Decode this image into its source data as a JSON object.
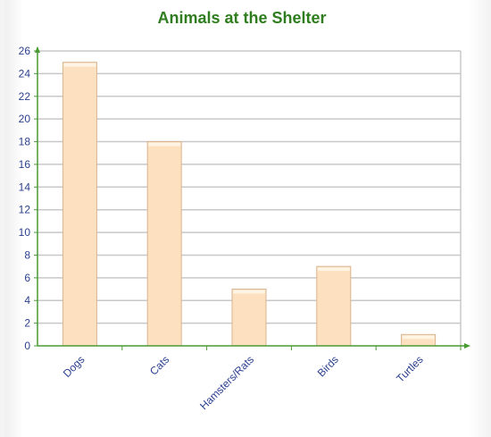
{
  "chart_data": {
    "type": "bar",
    "title": "Animals at the Shelter",
    "categories": [
      "Dogs",
      "Cats",
      "Hamsters/Rats",
      "Birds",
      "Turtles"
    ],
    "values": [
      25,
      18,
      5,
      7,
      1
    ],
    "ylim": [
      0,
      26
    ],
    "yticks": [
      0,
      2,
      4,
      6,
      8,
      10,
      12,
      14,
      16,
      18,
      20,
      22,
      24,
      26
    ],
    "xlabel": "",
    "ylabel": "",
    "grid": true,
    "colors": {
      "bar_fill": "#fde0c0",
      "bar_top": "#fff4e4",
      "bar_stroke": "#d9b48e",
      "grid": "#c8c8c8",
      "axis": "#4a9a32",
      "title": "#2f7d1f",
      "labels": "#2a3f8f"
    }
  }
}
